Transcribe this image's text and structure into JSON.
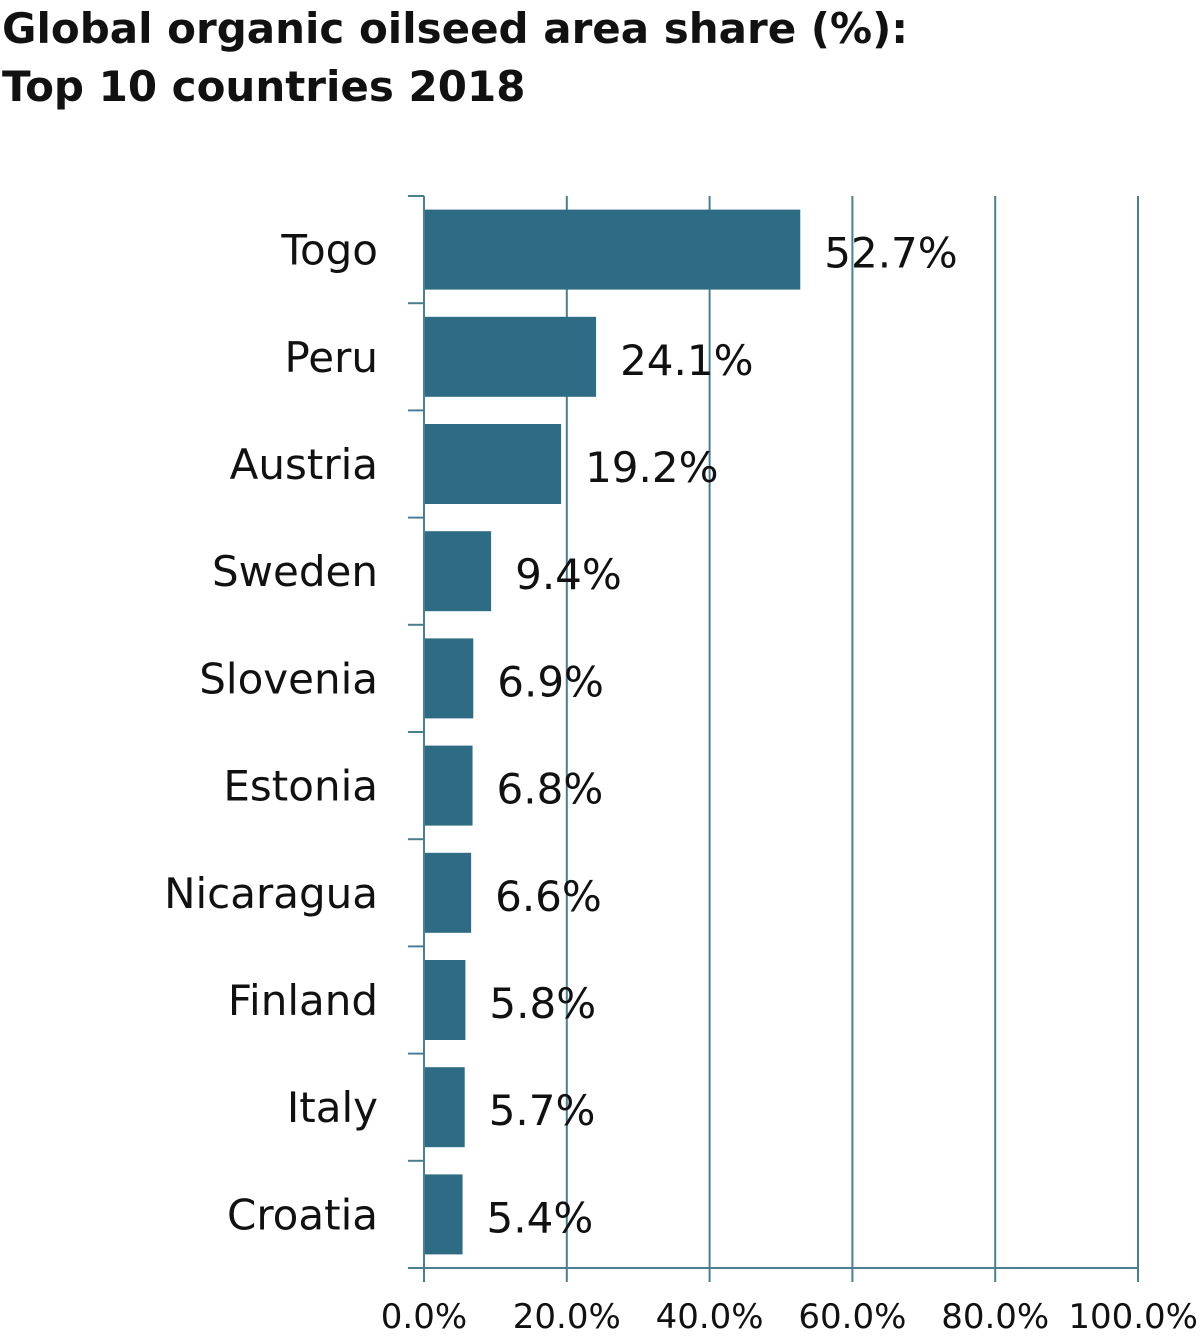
{
  "chart_data": {
    "type": "bar",
    "orientation": "horizontal",
    "title_lines": [
      "Global organic oilseed area share (%):",
      "Top 10 countries  2018"
    ],
    "categories": [
      "Togo",
      "Peru",
      "Austria",
      "Sweden",
      "Slovenia",
      "Estonia",
      "Nicaragua",
      "Finland",
      "Italy",
      "Croatia"
    ],
    "values": [
      52.7,
      24.1,
      19.2,
      9.4,
      6.9,
      6.8,
      6.6,
      5.8,
      5.7,
      5.4
    ],
    "value_labels": [
      "52.7%",
      "24.1%",
      "19.2%",
      "9.4%",
      "6.9%",
      "6.8%",
      "6.6%",
      "5.8%",
      "5.7%",
      "5.4%"
    ],
    "xlim": [
      0,
      100
    ],
    "x_ticks": [
      0,
      20,
      40,
      60,
      80,
      100
    ],
    "x_tick_labels": [
      "0.0%",
      "20.0%",
      "40.0%",
      "60.0%",
      "80.0%",
      "100.0%"
    ],
    "xlabel": "",
    "ylabel": "",
    "grid": "vertical",
    "legend": "none",
    "bar_color": "#2E6B85",
    "axis_color": "#4A7E93"
  }
}
